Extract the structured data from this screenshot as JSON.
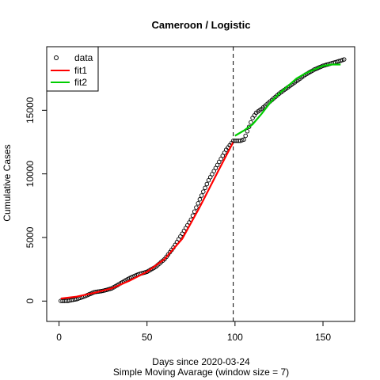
{
  "chart_data": {
    "type": "scatter",
    "title": "Cameroon / Logistic",
    "xlabel": "Days since 2020-03-24",
    "xlabel_sub": "Simple Moving Avarage (window size = 7)",
    "ylabel": "Cumulative Cases",
    "xlim": [
      -7,
      168
    ],
    "ylim": [
      -1600,
      20000
    ],
    "x_ticks": [
      0,
      50,
      100,
      150
    ],
    "y_ticks": [
      0,
      5000,
      10000,
      15000
    ],
    "y_tick_labels": [
      "0",
      "5000",
      "10000",
      "15000"
    ],
    "x_tick_labels": [
      "0",
      "50",
      "100",
      "150"
    ],
    "vline_x": 99,
    "grid": false,
    "legend_position": "top-left",
    "legend": [
      {
        "label": "data",
        "kind": "points",
        "color": "#000000"
      },
      {
        "label": "fit1",
        "kind": "line",
        "color": "#ff0000"
      },
      {
        "label": "fit2",
        "kind": "line",
        "color": "#00cd00"
      }
    ],
    "series": [
      {
        "name": "data",
        "kind": "points",
        "color": "#000000",
        "points": [
          [
            1,
            10
          ],
          [
            5,
            20
          ],
          [
            10,
            150
          ],
          [
            15,
            400
          ],
          [
            20,
            700
          ],
          [
            25,
            800
          ],
          [
            30,
            1000
          ],
          [
            35,
            1400
          ],
          [
            40,
            1800
          ],
          [
            45,
            2100
          ],
          [
            50,
            2300
          ],
          [
            55,
            2700
          ],
          [
            60,
            3300
          ],
          [
            65,
            4200
          ],
          [
            70,
            5300
          ],
          [
            75,
            6400
          ],
          [
            80,
            8000
          ],
          [
            85,
            9500
          ],
          [
            90,
            10700
          ],
          [
            95,
            11900
          ],
          [
            99,
            12600
          ],
          [
            100,
            12600
          ],
          [
            103,
            12600
          ],
          [
            105,
            12700
          ],
          [
            106,
            13000
          ],
          [
            108,
            13700
          ],
          [
            110,
            14400
          ],
          [
            112,
            14800
          ],
          [
            115,
            15100
          ],
          [
            120,
            15700
          ],
          [
            125,
            16300
          ],
          [
            130,
            16800
          ],
          [
            135,
            17300
          ],
          [
            140,
            17800
          ],
          [
            145,
            18200
          ],
          [
            150,
            18500
          ],
          [
            155,
            18700
          ],
          [
            160,
            18900
          ],
          [
            162,
            19000
          ]
        ]
      },
      {
        "name": "fit1",
        "kind": "line",
        "color": "#ff0000",
        "points": [
          [
            1,
            200
          ],
          [
            10,
            350
          ],
          [
            20,
            650
          ],
          [
            30,
            1000
          ],
          [
            40,
            1600
          ],
          [
            50,
            2300
          ],
          [
            60,
            3300
          ],
          [
            70,
            4900
          ],
          [
            80,
            7400
          ],
          [
            90,
            10100
          ],
          [
            99,
            12500
          ]
        ]
      },
      {
        "name": "fit2",
        "kind": "line",
        "color": "#00cd00",
        "points": [
          [
            100,
            13000
          ],
          [
            105,
            13400
          ],
          [
            110,
            13900
          ],
          [
            115,
            14700
          ],
          [
            120,
            15600
          ],
          [
            125,
            16300
          ],
          [
            130,
            16900
          ],
          [
            135,
            17500
          ],
          [
            140,
            17900
          ],
          [
            145,
            18200
          ],
          [
            150,
            18500
          ],
          [
            155,
            18600
          ],
          [
            160,
            18600
          ]
        ]
      }
    ]
  }
}
